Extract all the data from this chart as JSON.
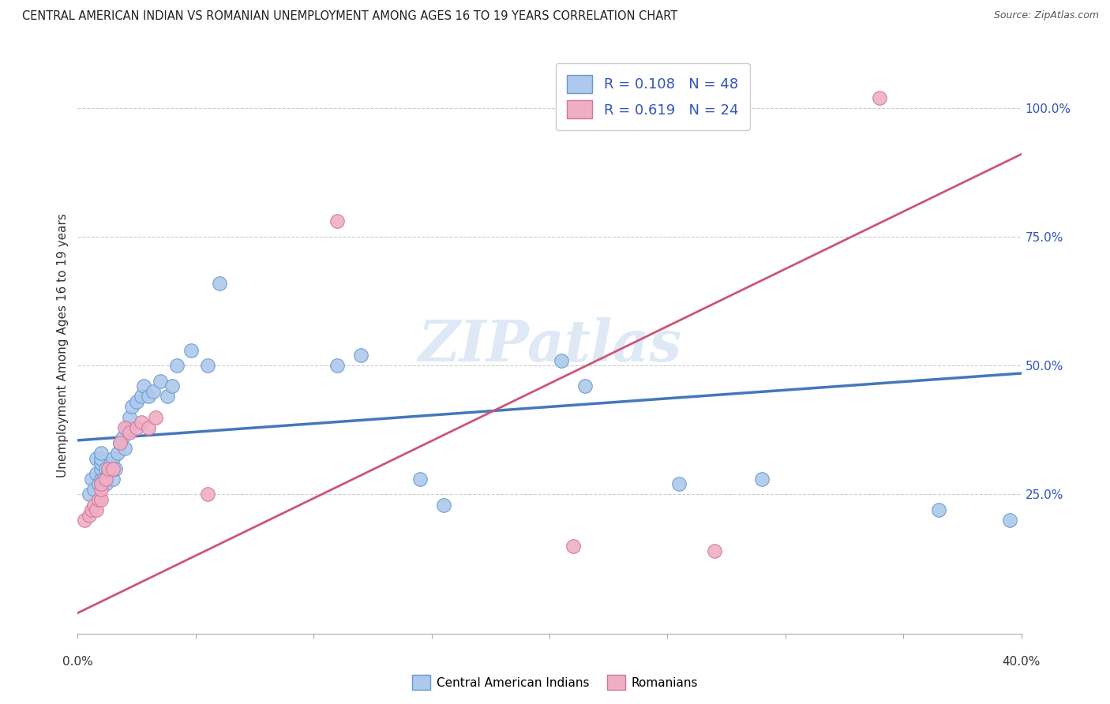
{
  "title": "CENTRAL AMERICAN INDIAN VS ROMANIAN UNEMPLOYMENT AMONG AGES 16 TO 19 YEARS CORRELATION CHART",
  "source": "Source: ZipAtlas.com",
  "ylabel": "Unemployment Among Ages 16 to 19 years",
  "xlim": [
    0.0,
    0.4
  ],
  "ylim": [
    -0.02,
    1.1
  ],
  "yticks": [
    0.25,
    0.5,
    0.75,
    1.0
  ],
  "ytick_labels": [
    "25.0%",
    "50.0%",
    "75.0%",
    "100.0%"
  ],
  "xtick_labels": [
    "0.0%",
    "40.0%"
  ],
  "watermark": "ZIPatlas",
  "blue_R": 0.108,
  "blue_N": 48,
  "pink_R": 0.619,
  "pink_N": 24,
  "blue_color": "#aec9ed",
  "pink_color": "#f0aec4",
  "blue_edge_color": "#6699cc",
  "pink_edge_color": "#cc7799",
  "blue_line_color": "#4477bb",
  "pink_line_color": "#cc5577",
  "legend_text_color": "#3355bb",
  "blue_scatter_x": [
    0.005,
    0.006,
    0.007,
    0.008,
    0.008,
    0.009,
    0.01,
    0.01,
    0.01,
    0.01,
    0.01,
    0.011,
    0.012,
    0.012,
    0.013,
    0.014,
    0.015,
    0.015,
    0.016,
    0.017,
    0.018,
    0.019,
    0.02,
    0.021,
    0.022,
    0.023,
    0.025,
    0.027,
    0.028,
    0.03,
    0.032,
    0.035,
    0.038,
    0.04,
    0.042,
    0.048,
    0.055,
    0.06,
    0.11,
    0.12,
    0.145,
    0.155,
    0.205,
    0.215,
    0.255,
    0.29,
    0.365,
    0.395
  ],
  "blue_scatter_y": [
    0.25,
    0.28,
    0.26,
    0.29,
    0.32,
    0.27,
    0.28,
    0.3,
    0.31,
    0.32,
    0.33,
    0.28,
    0.27,
    0.3,
    0.29,
    0.31,
    0.28,
    0.32,
    0.3,
    0.33,
    0.35,
    0.36,
    0.34,
    0.38,
    0.4,
    0.42,
    0.43,
    0.44,
    0.46,
    0.44,
    0.45,
    0.47,
    0.44,
    0.46,
    0.5,
    0.53,
    0.5,
    0.66,
    0.5,
    0.52,
    0.28,
    0.23,
    0.51,
    0.46,
    0.27,
    0.28,
    0.22,
    0.2
  ],
  "pink_scatter_x": [
    0.003,
    0.005,
    0.006,
    0.007,
    0.008,
    0.009,
    0.01,
    0.01,
    0.01,
    0.012,
    0.013,
    0.015,
    0.018,
    0.02,
    0.022,
    0.025,
    0.027,
    0.03,
    0.033,
    0.055,
    0.11,
    0.21,
    0.27,
    0.34
  ],
  "pink_scatter_y": [
    0.2,
    0.21,
    0.22,
    0.23,
    0.22,
    0.24,
    0.24,
    0.26,
    0.27,
    0.28,
    0.3,
    0.3,
    0.35,
    0.38,
    0.37,
    0.38,
    0.39,
    0.38,
    0.4,
    0.25,
    0.78,
    0.15,
    0.14,
    1.02
  ],
  "blue_line_x": [
    0.0,
    0.4
  ],
  "blue_line_y": [
    0.355,
    0.485
  ],
  "pink_line_x": [
    0.0,
    0.4
  ],
  "pink_line_y": [
    0.02,
    0.91
  ],
  "grid_color": "#cccccc",
  "grid_linestyle": "--",
  "spine_color": "#aaaaaa"
}
